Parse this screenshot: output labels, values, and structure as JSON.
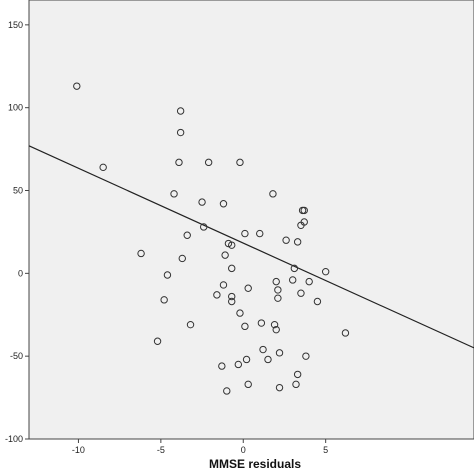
{
  "chart_data": {
    "type": "scatter",
    "title": "",
    "xlabel": "MMSE residuals",
    "ylabel": "",
    "xlim": [
      -13.0,
      14.0
    ],
    "ylim": [
      -100,
      165
    ],
    "x_ticks": [
      -10,
      -5,
      0,
      5
    ],
    "y_ticks": [
      -100,
      -50,
      0,
      50,
      100,
      150
    ],
    "grid": false,
    "legend": "none",
    "colors": {
      "plot_background": "#f0f0f0",
      "marker_stroke": "#333333",
      "fit_line": "#222222"
    },
    "fit_line": {
      "x": [
        -13.0,
        14.0
      ],
      "y": [
        77,
        -45
      ]
    },
    "points": [
      {
        "x": -10.1,
        "y": 113
      },
      {
        "x": -8.5,
        "y": 64
      },
      {
        "x": -6.2,
        "y": 12
      },
      {
        "x": -5.2,
        "y": -41
      },
      {
        "x": -4.8,
        "y": -16
      },
      {
        "x": -4.6,
        "y": -1
      },
      {
        "x": -4.2,
        "y": 48
      },
      {
        "x": -3.8,
        "y": 98
      },
      {
        "x": -3.8,
        "y": 85
      },
      {
        "x": -3.9,
        "y": 67
      },
      {
        "x": -3.7,
        "y": 9
      },
      {
        "x": -3.4,
        "y": 23
      },
      {
        "x": -3.2,
        "y": -31
      },
      {
        "x": -2.5,
        "y": 43
      },
      {
        "x": -2.4,
        "y": 28
      },
      {
        "x": -2.1,
        "y": 67
      },
      {
        "x": -1.6,
        "y": -13
      },
      {
        "x": -1.3,
        "y": -56
      },
      {
        "x": -1.2,
        "y": 42
      },
      {
        "x": -1.2,
        "y": -7
      },
      {
        "x": -1.1,
        "y": 11
      },
      {
        "x": -1.0,
        "y": -71
      },
      {
        "x": -0.9,
        "y": 18
      },
      {
        "x": -0.7,
        "y": 17
      },
      {
        "x": -0.7,
        "y": 3
      },
      {
        "x": -0.7,
        "y": -14
      },
      {
        "x": -0.7,
        "y": -17
      },
      {
        "x": -0.2,
        "y": 67
      },
      {
        "x": -0.3,
        "y": -55
      },
      {
        "x": -0.2,
        "y": -24
      },
      {
        "x": 0.1,
        "y": 24
      },
      {
        "x": 0.1,
        "y": -32
      },
      {
        "x": 0.2,
        "y": -52
      },
      {
        "x": 0.3,
        "y": -9
      },
      {
        "x": 0.3,
        "y": -67
      },
      {
        "x": 1.0,
        "y": 24
      },
      {
        "x": 1.1,
        "y": -30
      },
      {
        "x": 1.2,
        "y": -46
      },
      {
        "x": 1.5,
        "y": -52
      },
      {
        "x": 1.8,
        "y": 48
      },
      {
        "x": 1.9,
        "y": -31
      },
      {
        "x": 2.0,
        "y": -5
      },
      {
        "x": 2.0,
        "y": -34
      },
      {
        "x": 2.1,
        "y": -15
      },
      {
        "x": 2.1,
        "y": -10
      },
      {
        "x": 2.2,
        "y": -69
      },
      {
        "x": 2.2,
        "y": -48
      },
      {
        "x": 2.6,
        "y": 20
      },
      {
        "x": 3.0,
        "y": -4
      },
      {
        "x": 3.1,
        "y": 3
      },
      {
        "x": 3.2,
        "y": -67
      },
      {
        "x": 3.3,
        "y": -61
      },
      {
        "x": 3.3,
        "y": 19
      },
      {
        "x": 3.5,
        "y": -12
      },
      {
        "x": 3.5,
        "y": 29
      },
      {
        "x": 3.6,
        "y": 38
      },
      {
        "x": 3.7,
        "y": 38
      },
      {
        "x": 3.7,
        "y": 31
      },
      {
        "x": 3.8,
        "y": -50
      },
      {
        "x": 4.0,
        "y": -5
      },
      {
        "x": 4.5,
        "y": -17
      },
      {
        "x": 5.0,
        "y": 1
      },
      {
        "x": 6.2,
        "y": -36
      }
    ]
  }
}
